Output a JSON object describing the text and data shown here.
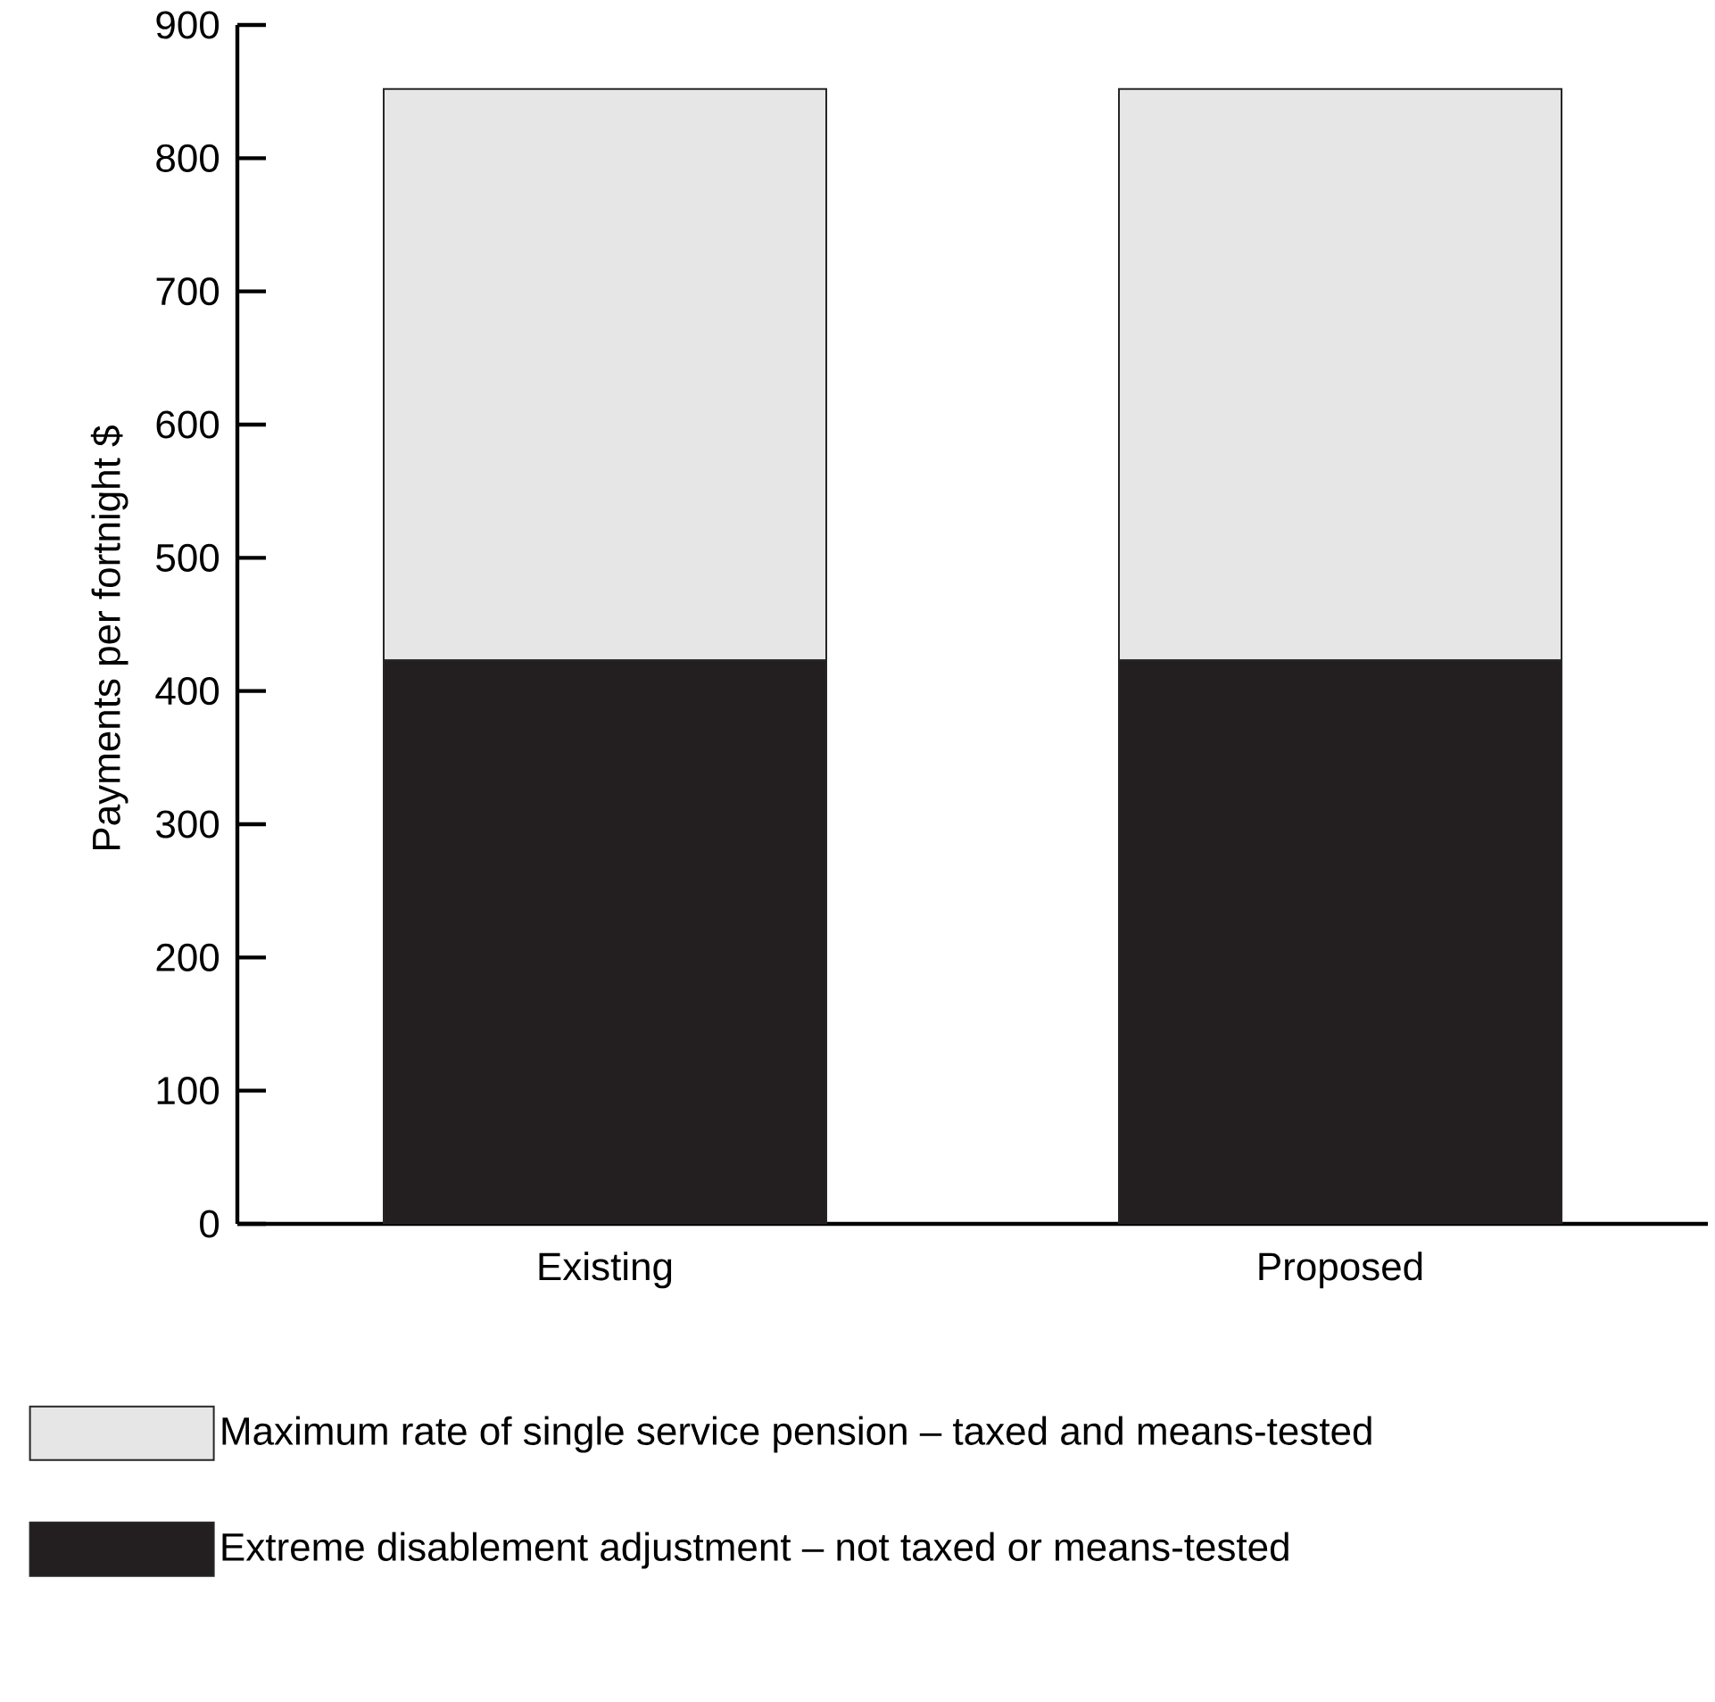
{
  "chart_data": {
    "type": "bar",
    "stacked": true,
    "ylabel": "Payments per fortnight $",
    "categories": [
      "Existing",
      "Proposed"
    ],
    "series": [
      {
        "name": "Extreme disablement adjustment – not taxed or means-tested",
        "color": "#231f20",
        "values": [
          423,
          423
        ]
      },
      {
        "name": "Maximum rate of single service pension – taxed and means-tested",
        "color": "#e6e6e6",
        "values": [
          429,
          429
        ]
      }
    ],
    "ylim": [
      0,
      900
    ],
    "yticks": [
      0,
      100,
      200,
      300,
      400,
      500,
      600,
      700,
      800,
      900
    ],
    "legend": "bottom"
  }
}
